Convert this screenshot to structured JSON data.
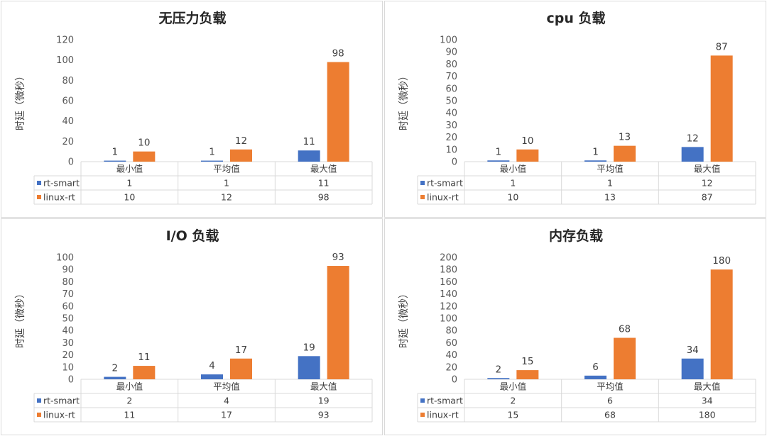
{
  "colors": {
    "rt_smart": "#4472c4",
    "linux_rt": "#ed7d31",
    "grid": "#d9d9d9",
    "text": "#404040"
  },
  "chart_data": [
    {
      "type": "bar",
      "title": "无压力负载",
      "ylabel": "时延（微秒）",
      "categories": [
        "最小值",
        "平均值",
        "最大值"
      ],
      "series": [
        {
          "name": "rt-smart",
          "values": [
            1,
            1,
            11
          ]
        },
        {
          "name": "linux-rt",
          "values": [
            10,
            12,
            98
          ]
        }
      ],
      "ylim": [
        0,
        120
      ],
      "yticks": [
        0,
        20,
        40,
        60,
        80,
        100,
        120
      ],
      "grid": false,
      "legend": "data-table"
    },
    {
      "type": "bar",
      "title": "cpu 负载",
      "ylabel": "时延（微秒）",
      "categories": [
        "最小值",
        "平均值",
        "最大值"
      ],
      "series": [
        {
          "name": "rt-smart",
          "values": [
            1,
            1,
            12
          ]
        },
        {
          "name": "linux-rt",
          "values": [
            10,
            13,
            87
          ]
        }
      ],
      "ylim": [
        0,
        100
      ],
      "yticks": [
        0,
        10,
        20,
        30,
        40,
        50,
        60,
        70,
        80,
        90,
        100
      ],
      "grid": false,
      "legend": "data-table"
    },
    {
      "type": "bar",
      "title": "I/O 负载",
      "ylabel": "时延（微秒）",
      "categories": [
        "最小值",
        "平均值",
        "最大值"
      ],
      "series": [
        {
          "name": "rt-smart",
          "values": [
            2,
            4,
            19
          ]
        },
        {
          "name": "linux-rt",
          "values": [
            11,
            17,
            93
          ]
        }
      ],
      "ylim": [
        0,
        100
      ],
      "yticks": [
        0,
        10,
        20,
        30,
        40,
        50,
        60,
        70,
        80,
        90,
        100
      ],
      "grid": false,
      "legend": "data-table"
    },
    {
      "type": "bar",
      "title": "内存负载",
      "ylabel": "时延（微秒）",
      "categories": [
        "最小值",
        "平均值",
        "最大值"
      ],
      "series": [
        {
          "name": "rt-smart",
          "values": [
            2,
            6,
            34
          ]
        },
        {
          "name": "linux-rt",
          "values": [
            15,
            68,
            180
          ]
        }
      ],
      "ylim": [
        0,
        200
      ],
      "yticks": [
        0,
        20,
        40,
        60,
        80,
        100,
        120,
        140,
        160,
        180,
        200
      ],
      "grid": false,
      "legend": "data-table"
    }
  ]
}
